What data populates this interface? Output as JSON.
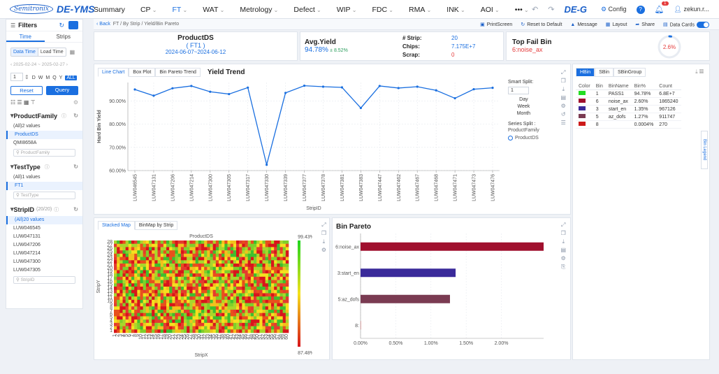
{
  "app": {
    "logo_company": "Semitronix",
    "logo_product": "DE-YMS",
    "product2": "DE-G",
    "user": "zekun.r..."
  },
  "nav": [
    {
      "label": "Summary",
      "active": false,
      "dd": false
    },
    {
      "label": "CP",
      "active": false,
      "dd": true
    },
    {
      "label": "FT",
      "active": true,
      "dd": true
    },
    {
      "label": "WAT",
      "active": false,
      "dd": true
    },
    {
      "label": "Metrology",
      "active": false,
      "dd": true
    },
    {
      "label": "Defect",
      "active": false,
      "dd": true
    },
    {
      "label": "WIP",
      "active": false,
      "dd": true
    },
    {
      "label": "FDC",
      "active": false,
      "dd": true
    },
    {
      "label": "RMA",
      "active": false,
      "dd": true
    },
    {
      "label": "INK",
      "active": false,
      "dd": true
    },
    {
      "label": "AOI",
      "active": false,
      "dd": true
    },
    {
      "label": "•••",
      "active": false,
      "dd": true
    }
  ],
  "top_right": {
    "config": "Config",
    "badge": "1"
  },
  "breadcrumb": {
    "back": "Back",
    "path": "FT / By Strip / Yield/Bin Pareto"
  },
  "toolbar": {
    "print": "PrintScreen",
    "reset": "Reset to Default",
    "message": "Message",
    "layout": "Layout",
    "share": "Share",
    "data_cards": "Data Cards"
  },
  "filters": {
    "title": "Filters",
    "tab_time": "Time",
    "tab_strips": "Strips",
    "data_time": "Data Time",
    "load_time": "Load Time",
    "date_from": "2025-02-24",
    "date_to": "2025-02-27",
    "num": "1",
    "letters": [
      "D",
      "W",
      "M",
      "Q",
      "Y",
      "ALL"
    ],
    "reset": "Reset",
    "query": "Query",
    "groups": [
      {
        "title": "ProductFamily",
        "count": "",
        "options": [
          "(All)2 values",
          "ProductDS",
          "QMI8658A"
        ],
        "selected": 1,
        "search": "ProductFamily"
      },
      {
        "title": "TestType",
        "count": "",
        "options": [
          "(All)1 values",
          "FT1"
        ],
        "selected": 1,
        "search": "TestType"
      },
      {
        "title": "StripID",
        "count": "(20/20)",
        "options": [
          "(All)20 values",
          "LUW046545",
          "LUW047131",
          "LUW047206",
          "LUW047214",
          "LUW047300",
          "LUW047305"
        ],
        "selected": 0,
        "search": "StripID"
      }
    ]
  },
  "kpi": {
    "product": "ProductDS",
    "test": "( FT1 )",
    "range": "2024-06-07~2024-06-12",
    "avg_title": "Avg.Yield",
    "avg_val": "94.78%",
    "avg_sub": "± 8.52%",
    "strip_l": "# Strip:",
    "strip_v": "20",
    "chips_l": "Chips:",
    "chips_v": "7.175E+7",
    "scrap_l": "Scrap:",
    "scrap_v": "0",
    "topfail_title": "Top Fail Bin",
    "topfail_val": "6:noise_ax",
    "gauge": "2.6%"
  },
  "yield_panel": {
    "tabs": [
      "Line Chart",
      "Box Plot",
      "Bin Pareto Trend"
    ],
    "title": "Yield Trend",
    "smart_split": "Smart Split:",
    "num": "1",
    "splits": [
      "Day",
      "Week",
      "Month"
    ],
    "series_split": "Series Split :",
    "series_field": "ProductFamily",
    "series_item": "ProductDS"
  },
  "chart_data": [
    {
      "type": "line",
      "title": "Yield Trend",
      "xlabel": "StripID",
      "ylabel": "Hard Bin Yield",
      "ylim": [
        60,
        98
      ],
      "yticks": [
        "60.00%",
        "70.00%",
        "80.00%",
        "90.00%"
      ],
      "grid": true,
      "categories": [
        "LUW046545",
        "LUW047131",
        "LUW047206",
        "LUW047214",
        "LUW047300",
        "LUW047305",
        "LUW047317",
        "LUW047330",
        "LUW047339",
        "LUW047377",
        "LUW047378",
        "LUW047381",
        "LUW047383",
        "LUW047447",
        "LUW047462",
        "LUW047467",
        "LUW047468",
        "LUW047471",
        "LUW047473",
        "LUW047476"
      ],
      "series": [
        {
          "name": "ProductDS",
          "values": [
            95.0,
            92.3,
            95.5,
            96.5,
            94.0,
            93.0,
            95.8,
            62.5,
            93.5,
            96.6,
            96.2,
            95.9,
            87.0,
            96.5,
            95.6,
            96.2,
            94.6,
            91.2,
            95.1,
            95.7
          ]
        }
      ]
    },
    {
      "type": "heatmap",
      "title": "ProductDS",
      "xlabel": "StripX",
      "ylabel": "StripY",
      "cols": 60,
      "rows": 28,
      "scale_max": "99.43%",
      "scale_min": "87.48%"
    },
    {
      "type": "bar",
      "orientation": "horizontal",
      "title": "Bin Pareto",
      "categories": [
        "6:noise_ax",
        "3:start_en",
        "5:az_dofs",
        "8:"
      ],
      "values": [
        2.6,
        1.35,
        1.27,
        0.0004
      ],
      "colors": [
        "#a0102e",
        "#3a2a9a",
        "#7a3b52",
        "#cc1a1a"
      ],
      "xlim": [
        0,
        2.6
      ],
      "xticks": [
        "0.00%",
        "0.50%",
        "1.00%",
        "1.50%",
        "2.00%"
      ]
    }
  ],
  "stacked": {
    "tabs": [
      "Stacked Map",
      "BinMap by Strip"
    ]
  },
  "bin_table": {
    "tabs": [
      "HBin",
      "SBin",
      "SBinGroup"
    ],
    "headers": [
      "Color",
      "Bin",
      "BinName",
      "Bin%",
      "Count"
    ],
    "rows": [
      {
        "color": "#22dd22",
        "bin": "1",
        "name": "PASS1",
        "pct": "94.78%",
        "count": "6.8E+7"
      },
      {
        "color": "#a0102e",
        "bin": "6",
        "name": "noise_ax",
        "pct": "2.60%",
        "count": "1865240"
      },
      {
        "color": "#3a2a9a",
        "bin": "3",
        "name": "start_en",
        "pct": "1.35%",
        "count": "967126"
      },
      {
        "color": "#7a3b52",
        "bin": "5",
        "name": "az_dofs",
        "pct": "1.27%",
        "count": "911747"
      },
      {
        "color": "#cc1a1a",
        "bin": "8",
        "name": "",
        "pct": "0.0004%",
        "count": "270"
      }
    ],
    "legend_tab": "Bin Legend"
  }
}
